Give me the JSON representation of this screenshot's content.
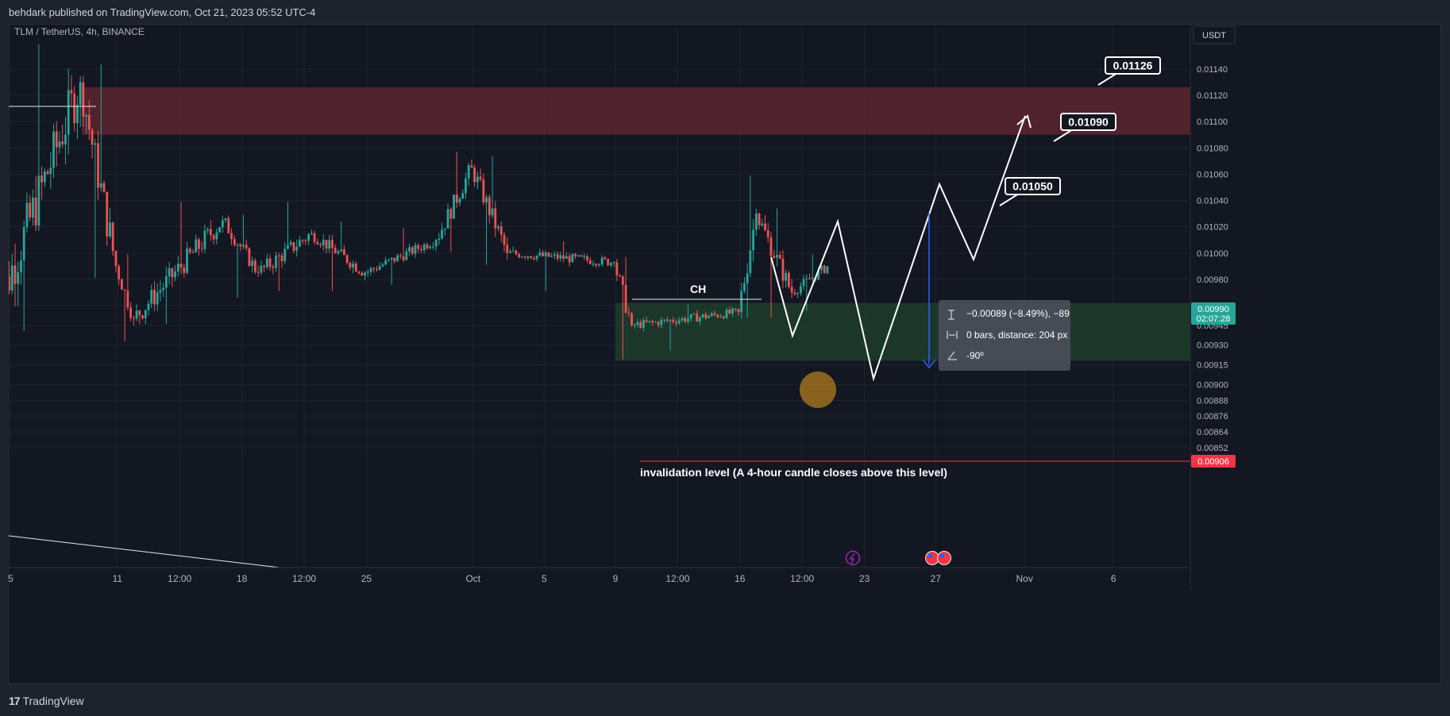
{
  "header": {
    "publisher_line": "behdark published on TradingView.com, Oct 21, 2023 05:52 UTC-4"
  },
  "symbol": {
    "pair": "TLM / TetherUS",
    "interval": "4h",
    "exchange": "BINANCE",
    "symbol_line": "TLM / TetherUS, 4h, BINANCE"
  },
  "price_axis": {
    "currency_button": "USDT",
    "tick_labels": [
      "0.01140",
      "0.01120",
      "0.01100",
      "0.01080",
      "0.01060",
      "0.01040",
      "0.01020",
      "0.01000",
      "0.00980",
      "0.00960",
      "0.00945",
      "0.00930",
      "0.00915",
      "0.00900",
      "0.00888",
      "0.00876",
      "0.00864",
      "0.00852"
    ],
    "current_price": "0.00990",
    "countdown": "02:07:28",
    "invalidation_price": "0.00906"
  },
  "time_axis": {
    "labels": [
      "5",
      "11",
      "12:00",
      "18",
      "12:00",
      "25",
      "Oct",
      "5",
      "9",
      "12:00",
      "16",
      "12:00",
      "23",
      "27",
      "Nov",
      "6"
    ]
  },
  "annotations": {
    "ch_label": "CH",
    "invalidation_text": "invalidation level (A 4-hour candle closes above this level)",
    "targets": [
      "0.01050",
      "0.01090",
      "0.01126"
    ]
  },
  "measure_tooltip": {
    "change": "−0.00089 (−8.49%), −89",
    "bars": "0 bars, distance: 204 px",
    "angle": "-90º"
  },
  "footer": {
    "brand": "TradingView"
  },
  "colors": {
    "background": "#131722",
    "bull": "#26a69a",
    "bear": "#ef5350",
    "supply_zone": "#5c2530",
    "demand_zone": "#1e3d2b",
    "current_price_tag": "#26a69a",
    "invalidation_tag": "#f23645",
    "measure_arrow": "#2962ff"
  },
  "chart_data": {
    "type": "candlestick",
    "symbol": "TLM / TetherUS",
    "interval": "4h",
    "exchange": "BINANCE",
    "ylim": [
      0.00852,
      0.0115
    ],
    "x_range": [
      "2023-09-04",
      "2023-11-08"
    ],
    "segments": [
      {
        "start": "2023-09-04",
        "end": "2023-09-09",
        "open": 0.00945,
        "close": 0.0113,
        "low": 0.0094,
        "high": 0.0116
      },
      {
        "start": "2023-09-09",
        "end": "2023-09-11",
        "open": 0.0113,
        "close": 0.0099,
        "low": 0.0098,
        "high": 0.01145
      },
      {
        "start": "2023-09-11",
        "end": "2023-09-12",
        "open": 0.0099,
        "close": 0.0095,
        "low": 0.00932,
        "high": 0.01
      },
      {
        "start": "2023-09-12",
        "end": "2023-09-17",
        "open": 0.0095,
        "close": 0.01025,
        "low": 0.00945,
        "high": 0.0104
      },
      {
        "start": "2023-09-17",
        "end": "2023-09-19",
        "open": 0.01025,
        "close": 0.00985,
        "low": 0.00965,
        "high": 0.0103
      },
      {
        "start": "2023-09-19",
        "end": "2023-09-22",
        "open": 0.00985,
        "close": 0.01015,
        "low": 0.0097,
        "high": 0.0104
      },
      {
        "start": "2023-09-22",
        "end": "2023-09-25",
        "open": 0.01015,
        "close": 0.00985,
        "low": 0.0097,
        "high": 0.01025
      },
      {
        "start": "2023-09-25",
        "end": "2023-09-29",
        "open": 0.00985,
        "close": 0.0101,
        "low": 0.00975,
        "high": 0.0102
      },
      {
        "start": "2023-09-29",
        "end": "2023-10-01",
        "open": 0.0101,
        "close": 0.01065,
        "low": 0.01,
        "high": 0.01078
      },
      {
        "start": "2023-10-01",
        "end": "2023-10-03",
        "open": 0.01065,
        "close": 0.01,
        "low": 0.0099,
        "high": 0.01075
      },
      {
        "start": "2023-10-03",
        "end": "2023-10-09",
        "open": 0.01,
        "close": 0.00993,
        "low": 0.0097,
        "high": 0.0101
      },
      {
        "start": "2023-10-09",
        "end": "2023-10-10",
        "open": 0.00993,
        "close": 0.00945,
        "low": 0.00918,
        "high": 0.00998
      },
      {
        "start": "2023-10-10",
        "end": "2023-10-16",
        "open": 0.00945,
        "close": 0.00955,
        "low": 0.00925,
        "high": 0.00962
      },
      {
        "start": "2023-10-16",
        "end": "2023-10-17",
        "open": 0.00955,
        "close": 0.0103,
        "low": 0.0095,
        "high": 0.0106
      },
      {
        "start": "2023-10-17",
        "end": "2023-10-19",
        "open": 0.0103,
        "close": 0.0097,
        "low": 0.0095,
        "high": 0.01035
      },
      {
        "start": "2023-10-19",
        "end": "2023-10-21",
        "open": 0.0097,
        "close": 0.0099,
        "low": 0.00955,
        "high": 0.01
      }
    ],
    "zones": [
      {
        "name": "supply",
        "from": "2023-09-09",
        "price_low": 0.0109,
        "price_high": 0.01126
      },
      {
        "name": "demand",
        "from": "2023-10-09",
        "price_low": 0.00918,
        "price_high": 0.00962
      }
    ],
    "levels": [
      {
        "name": "CH",
        "price": 0.00998,
        "from": "2023-10-09",
        "to": "2023-10-16"
      },
      {
        "name": "invalidation",
        "price": 0.00906,
        "from": "2023-10-09"
      }
    ],
    "projection": [
      {
        "date": "2023-10-20",
        "price": 0.00975
      },
      {
        "date": "2023-10-21",
        "price": 0.0104
      },
      {
        "date": "2023-10-22",
        "price": 0.0095
      },
      {
        "date": "2023-10-25",
        "price": 0.01062
      },
      {
        "date": "2023-10-27",
        "price": 0.0102
      },
      {
        "date": "2023-10-30",
        "price": 0.01105
      }
    ],
    "targets": [
      0.0105,
      0.0109,
      0.01126
    ],
    "current_price": 0.0099
  }
}
